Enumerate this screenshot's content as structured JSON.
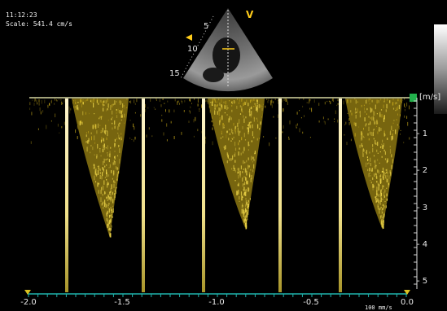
{
  "header": {
    "time": "11:12:23",
    "scale": "Scale: 541.4 cm/s"
  },
  "sector": {
    "marker_v": "V",
    "depth_labels": [
      "5",
      "10",
      "15"
    ]
  },
  "doppler": {
    "unit_label": "[m/s]",
    "velocity_labels": [
      "- 1",
      "- 2",
      "- 3",
      "- 4",
      "- 5"
    ],
    "time_labels": [
      "-2.0",
      "-1.5",
      "-1.0",
      "-0.5",
      "0.0"
    ],
    "sweep_speed": "100 mm/s"
  },
  "colors": {
    "spectrum": "#d9b81c",
    "baseline": "#d8d7a2",
    "timeline": "#1fb3ac",
    "marker": "#ffcc1a",
    "green_handle": "#22b14c"
  }
}
